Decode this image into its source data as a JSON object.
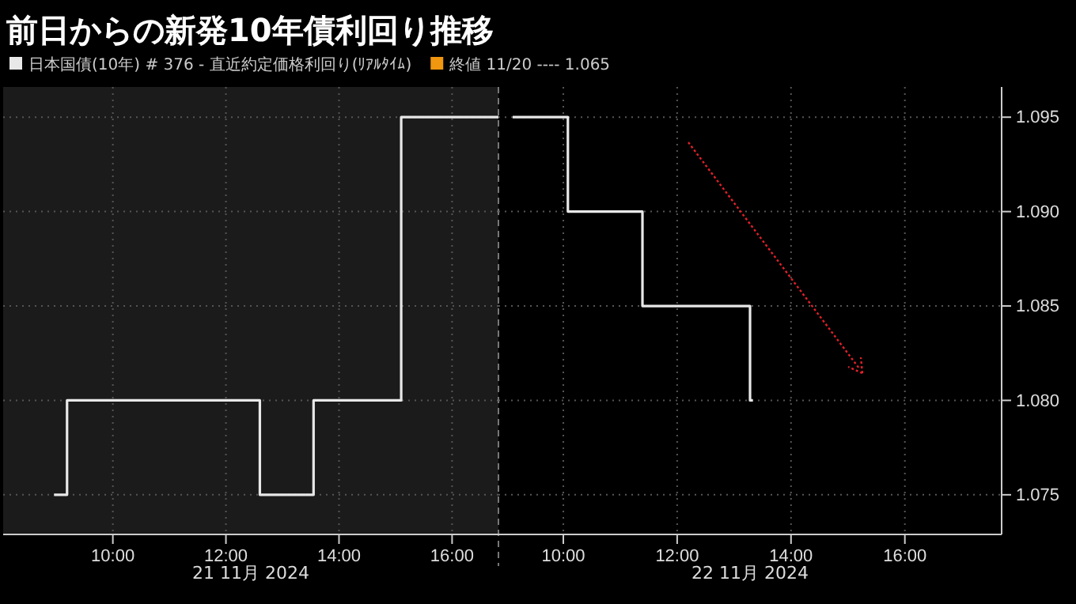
{
  "chart_data": [
    {
      "type": "step",
      "title": "前日からの新発10年債利回り推移",
      "xlabel": "21 11月 2024",
      "x": [
        8.96,
        9.19,
        12.6,
        13.55,
        15.1,
        16.82
      ],
      "series": [
        {
          "name": "日本国債(10年) # 376 - 直近約定価格利回り(ﾘｱﾙﾀｲﾑ)",
          "color": "#e8e8e8",
          "values": [
            1.075,
            1.08,
            1.075,
            1.08,
            1.095,
            1.095
          ]
        }
      ],
      "xlim": [
        8.06,
        16.82
      ],
      "xticks": [
        {
          "value": 10,
          "label": "10:00"
        },
        {
          "value": 12,
          "label": "12:00"
        },
        {
          "value": 14,
          "label": "14:00"
        },
        {
          "value": 16,
          "label": "16:00"
        }
      ],
      "ylim": [
        1.0729,
        1.0966
      ],
      "yticks": [
        1.075,
        1.08,
        1.085,
        1.09,
        1.095
      ],
      "bands": [
        {
          "axis": "x",
          "from": 8.06,
          "to": 16.82,
          "color": "#1b1b1b"
        }
      ],
      "ref_lines": [
        {
          "axis": "x",
          "value": 16.82,
          "line_style": "dashed",
          "color": "#777777"
        }
      ],
      "annotations": [
        "終値 11/20 ---- 1.065"
      ],
      "grid": true,
      "legend": "top left",
      "line_style": "solid",
      "tick_labels": "x"
    },
    {
      "type": "step",
      "xlabel": "22 11月 2024",
      "x": [
        9.11,
        10.08,
        11.39,
        13.28,
        13.33
      ],
      "series": [
        {
          "color": "#e8e8e8",
          "values": [
            1.095,
            1.09,
            1.085,
            1.08,
            1.08
          ]
        }
      ],
      "xlim": [
        8.86,
        17.7
      ],
      "xticks": [
        {
          "value": 10,
          "label": "10:00"
        },
        {
          "value": 12,
          "label": "12:00"
        },
        {
          "value": 14,
          "label": "14:00"
        },
        {
          "value": 16,
          "label": "16:00"
        }
      ],
      "ylim": [
        1.0729,
        1.0966
      ],
      "yticks": [
        {
          "value": 1.075,
          "label": "1.075"
        },
        {
          "value": 1.08,
          "label": "1.080"
        },
        {
          "value": 1.085,
          "label": "1.085"
        },
        {
          "value": 1.09,
          "label": "1.090"
        },
        {
          "value": 1.095,
          "label": "1.095"
        }
      ],
      "grid": true,
      "line_style": "solid"
    }
  ]
}
